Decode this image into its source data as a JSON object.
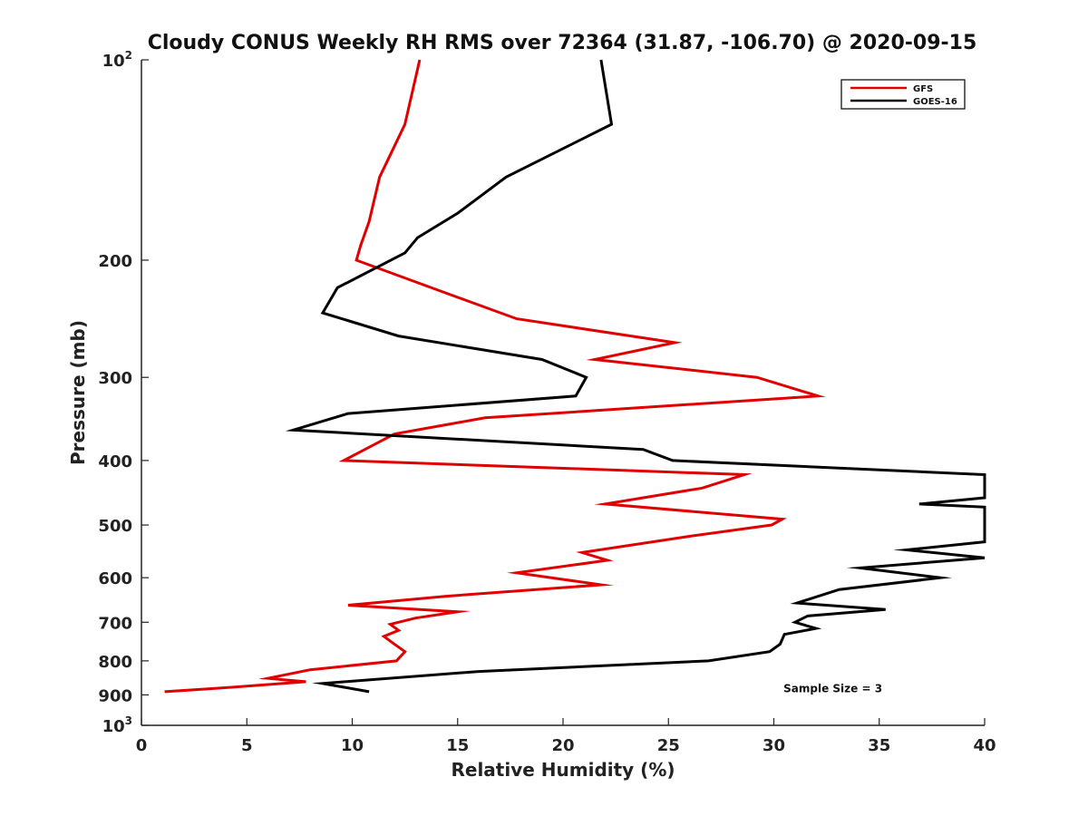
{
  "chart_data": {
    "type": "line",
    "title": "Cloudy CONUS Weekly RH RMS over 72364 (31.87, -106.70) @ 2020-09-15",
    "xlabel": "Relative Humidity (%)",
    "ylabel": "Pressure (mb)",
    "xlim": [
      0,
      40
    ],
    "ylim": [
      100,
      1000
    ],
    "y_scale": "log",
    "y_reversed": true,
    "grid": false,
    "legend_position": "top-right",
    "x_ticks": [
      0,
      5,
      10,
      15,
      20,
      25,
      30,
      35,
      40
    ],
    "y_ticks": [
      {
        "value": 100,
        "label": "10",
        "sup": "2"
      },
      {
        "value": 200,
        "label": "200",
        "sup": ""
      },
      {
        "value": 300,
        "label": "300",
        "sup": ""
      },
      {
        "value": 400,
        "label": "400",
        "sup": ""
      },
      {
        "value": 500,
        "label": "500",
        "sup": ""
      },
      {
        "value": 600,
        "label": "600",
        "sup": ""
      },
      {
        "value": 700,
        "label": "700",
        "sup": ""
      },
      {
        "value": 800,
        "label": "800",
        "sup": ""
      },
      {
        "value": 900,
        "label": "900",
        "sup": ""
      },
      {
        "value": 1000,
        "label": "10",
        "sup": "3"
      }
    ],
    "series": [
      {
        "name": "GFS",
        "color": "#e00000",
        "points": [
          [
            13.2,
            100
          ],
          [
            12.5,
            125
          ],
          [
            11.3,
            150
          ],
          [
            10.8,
            175
          ],
          [
            10.4,
            190
          ],
          [
            10.2,
            200
          ],
          [
            14.6,
            225
          ],
          [
            17.8,
            245
          ],
          [
            25.3,
            266
          ],
          [
            21.5,
            282
          ],
          [
            29.2,
            300
          ],
          [
            32.1,
            320
          ],
          [
            16.3,
            345
          ],
          [
            12.0,
            365
          ],
          [
            10.6,
            385
          ],
          [
            9.6,
            400
          ],
          [
            28.6,
            420
          ],
          [
            26.6,
            440
          ],
          [
            22.0,
            465
          ],
          [
            30.4,
            490
          ],
          [
            29.9,
            500
          ],
          [
            26.0,
            520
          ],
          [
            20.9,
            550
          ],
          [
            22.1,
            565
          ],
          [
            17.8,
            590
          ],
          [
            21.8,
            615
          ],
          [
            14.4,
            640
          ],
          [
            9.8,
            660
          ],
          [
            15.0,
            675
          ],
          [
            13.0,
            690
          ],
          [
            11.8,
            705
          ],
          [
            12.2,
            720
          ],
          [
            11.5,
            735
          ],
          [
            12.0,
            755
          ],
          [
            12.5,
            775
          ],
          [
            12.1,
            800
          ],
          [
            8.0,
            825
          ],
          [
            6.0,
            850
          ],
          [
            7.8,
            860
          ],
          [
            3.5,
            880
          ],
          [
            1.1,
            890
          ]
        ]
      },
      {
        "name": "GOES-16",
        "color": "#000000",
        "points": [
          [
            21.8,
            100
          ],
          [
            22.3,
            125
          ],
          [
            17.3,
            150
          ],
          [
            15.0,
            170
          ],
          [
            13.1,
            185
          ],
          [
            12.5,
            195
          ],
          [
            9.3,
            220
          ],
          [
            8.6,
            240
          ],
          [
            12.2,
            260
          ],
          [
            19.0,
            282
          ],
          [
            21.1,
            300
          ],
          [
            20.6,
            320
          ],
          [
            9.8,
            340
          ],
          [
            7.2,
            360
          ],
          [
            23.8,
            385
          ],
          [
            25.2,
            400
          ],
          [
            40.0,
            420
          ],
          [
            40.0,
            455
          ],
          [
            36.9,
            465
          ],
          [
            40.0,
            470
          ],
          [
            40.0,
            530
          ],
          [
            36.3,
            545
          ],
          [
            40.0,
            560
          ],
          [
            34.1,
            580
          ],
          [
            37.9,
            600
          ],
          [
            33.1,
            625
          ],
          [
            31.1,
            655
          ],
          [
            35.3,
            670
          ],
          [
            31.6,
            685
          ],
          [
            31.0,
            700
          ],
          [
            32.0,
            715
          ],
          [
            30.5,
            730
          ],
          [
            30.3,
            755
          ],
          [
            29.8,
            775
          ],
          [
            26.9,
            800
          ],
          [
            16.0,
            830
          ],
          [
            8.6,
            865
          ],
          [
            10.8,
            890
          ]
        ]
      }
    ],
    "annotations": [
      {
        "text": "Sample Size = 3",
        "x": 32.8,
        "y": 880
      }
    ]
  }
}
